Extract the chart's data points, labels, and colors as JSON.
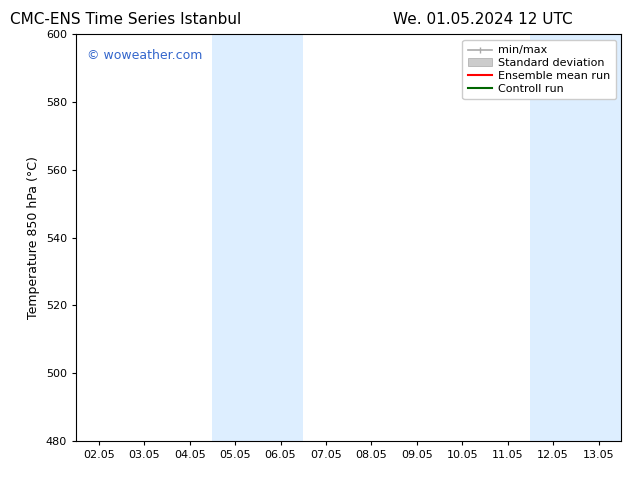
{
  "title_left": "CMC-ENS Time Series Istanbul",
  "title_right": "We. 01.05.2024 12 UTC",
  "ylabel": "Temperature 850 hPa (°C)",
  "xlim_dates": [
    "02.05",
    "03.05",
    "04.05",
    "05.05",
    "06.05",
    "07.05",
    "08.05",
    "09.05",
    "10.05",
    "11.05",
    "12.05",
    "13.05"
  ],
  "ylim": [
    480,
    600
  ],
  "yticks": [
    480,
    500,
    520,
    540,
    560,
    580,
    600
  ],
  "shaded_regions": [
    {
      "xstart": 2.5,
      "xend": 4.5,
      "color": "#ddeeff"
    },
    {
      "xstart": 9.5,
      "xend": 11.5,
      "color": "#ddeeff"
    }
  ],
  "watermark_text": "© woweather.com",
  "watermark_color": "#3366cc",
  "legend_entries": [
    {
      "label": "min/max",
      "color": "#aaaaaa",
      "lw": 1.2,
      "style": "minmax"
    },
    {
      "label": "Standard deviation",
      "color": "#cccccc",
      "lw": 6,
      "style": "stddev"
    },
    {
      "label": "Ensemble mean run",
      "color": "#ff0000",
      "lw": 1.5,
      "style": "line"
    },
    {
      "label": "Controll run",
      "color": "#006600",
      "lw": 1.5,
      "style": "line"
    }
  ],
  "bg_color": "#ffffff",
  "spine_color": "#000000",
  "title_fontsize": 11,
  "label_fontsize": 9,
  "tick_fontsize": 8,
  "legend_fontsize": 8,
  "watermark_fontsize": 9
}
